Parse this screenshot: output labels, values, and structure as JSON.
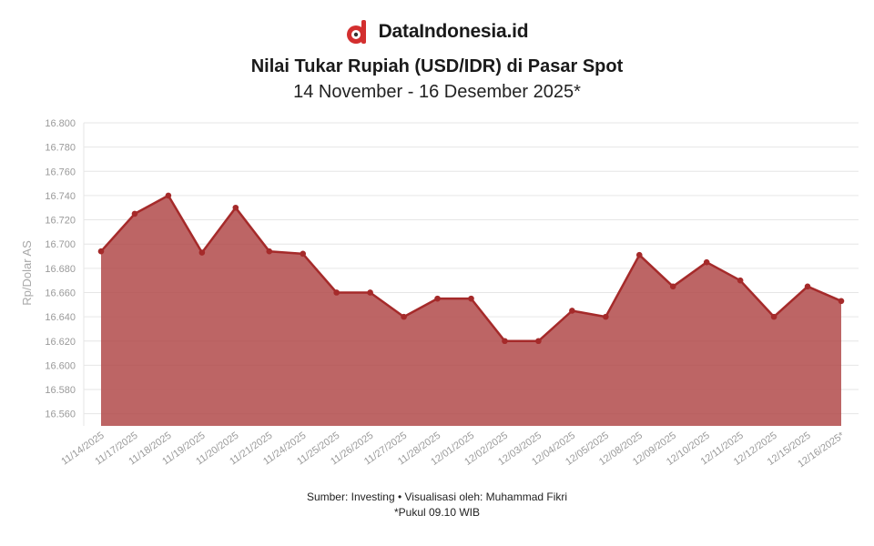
{
  "brand": {
    "name": "DataIndonesia.id",
    "accent_color": "#d32f2f",
    "icon": "dataindonesia-logo-icon"
  },
  "title": "Nilai Tukar Rupiah (USD/IDR) di Pasar Spot",
  "subtitle": "14 November - 16 Desember 2025*",
  "footer": {
    "source": "Sumber: Investing • Visualisasi oleh: Muhammad Fikri",
    "note": "*Pukul 09.10 WIB"
  },
  "chart_data": {
    "type": "area",
    "ylabel": "Rp/Dolar AS",
    "xlabel": "",
    "ylim": [
      16550,
      16800
    ],
    "yticks": [
      16560,
      16580,
      16600,
      16620,
      16640,
      16660,
      16680,
      16700,
      16720,
      16740,
      16760,
      16780,
      16800
    ],
    "ytick_labels": [
      "16.560",
      "16.580",
      "16.600",
      "16.620",
      "16.640",
      "16.660",
      "16.680",
      "16.700",
      "16.720",
      "16.740",
      "16.760",
      "16.780",
      "16.800"
    ],
    "grid": true,
    "line_color": "#a52a2a",
    "fill_color": "#b24a4a",
    "categories": [
      "11/14/2025",
      "11/17/2025",
      "11/18/2025",
      "11/19/2025",
      "11/20/2025",
      "11/21/2025",
      "11/24/2025",
      "11/25/2025",
      "11/26/2025",
      "11/27/2025",
      "11/28/2025",
      "12/01/2025",
      "12/02/2025",
      "12/03/2025",
      "12/04/2025",
      "12/05/2025",
      "12/08/2025",
      "12/09/2025",
      "12/10/2025",
      "12/11/2025",
      "12/12/2025",
      "12/15/2025",
      "12/16/2025*"
    ],
    "values": [
      16694,
      16725,
      16740,
      16693,
      16730,
      16694,
      16692,
      16660,
      16660,
      16640,
      16655,
      16655,
      16620,
      16620,
      16645,
      16640,
      16691,
      16665,
      16685,
      16670,
      16640,
      16665,
      16653
    ]
  }
}
